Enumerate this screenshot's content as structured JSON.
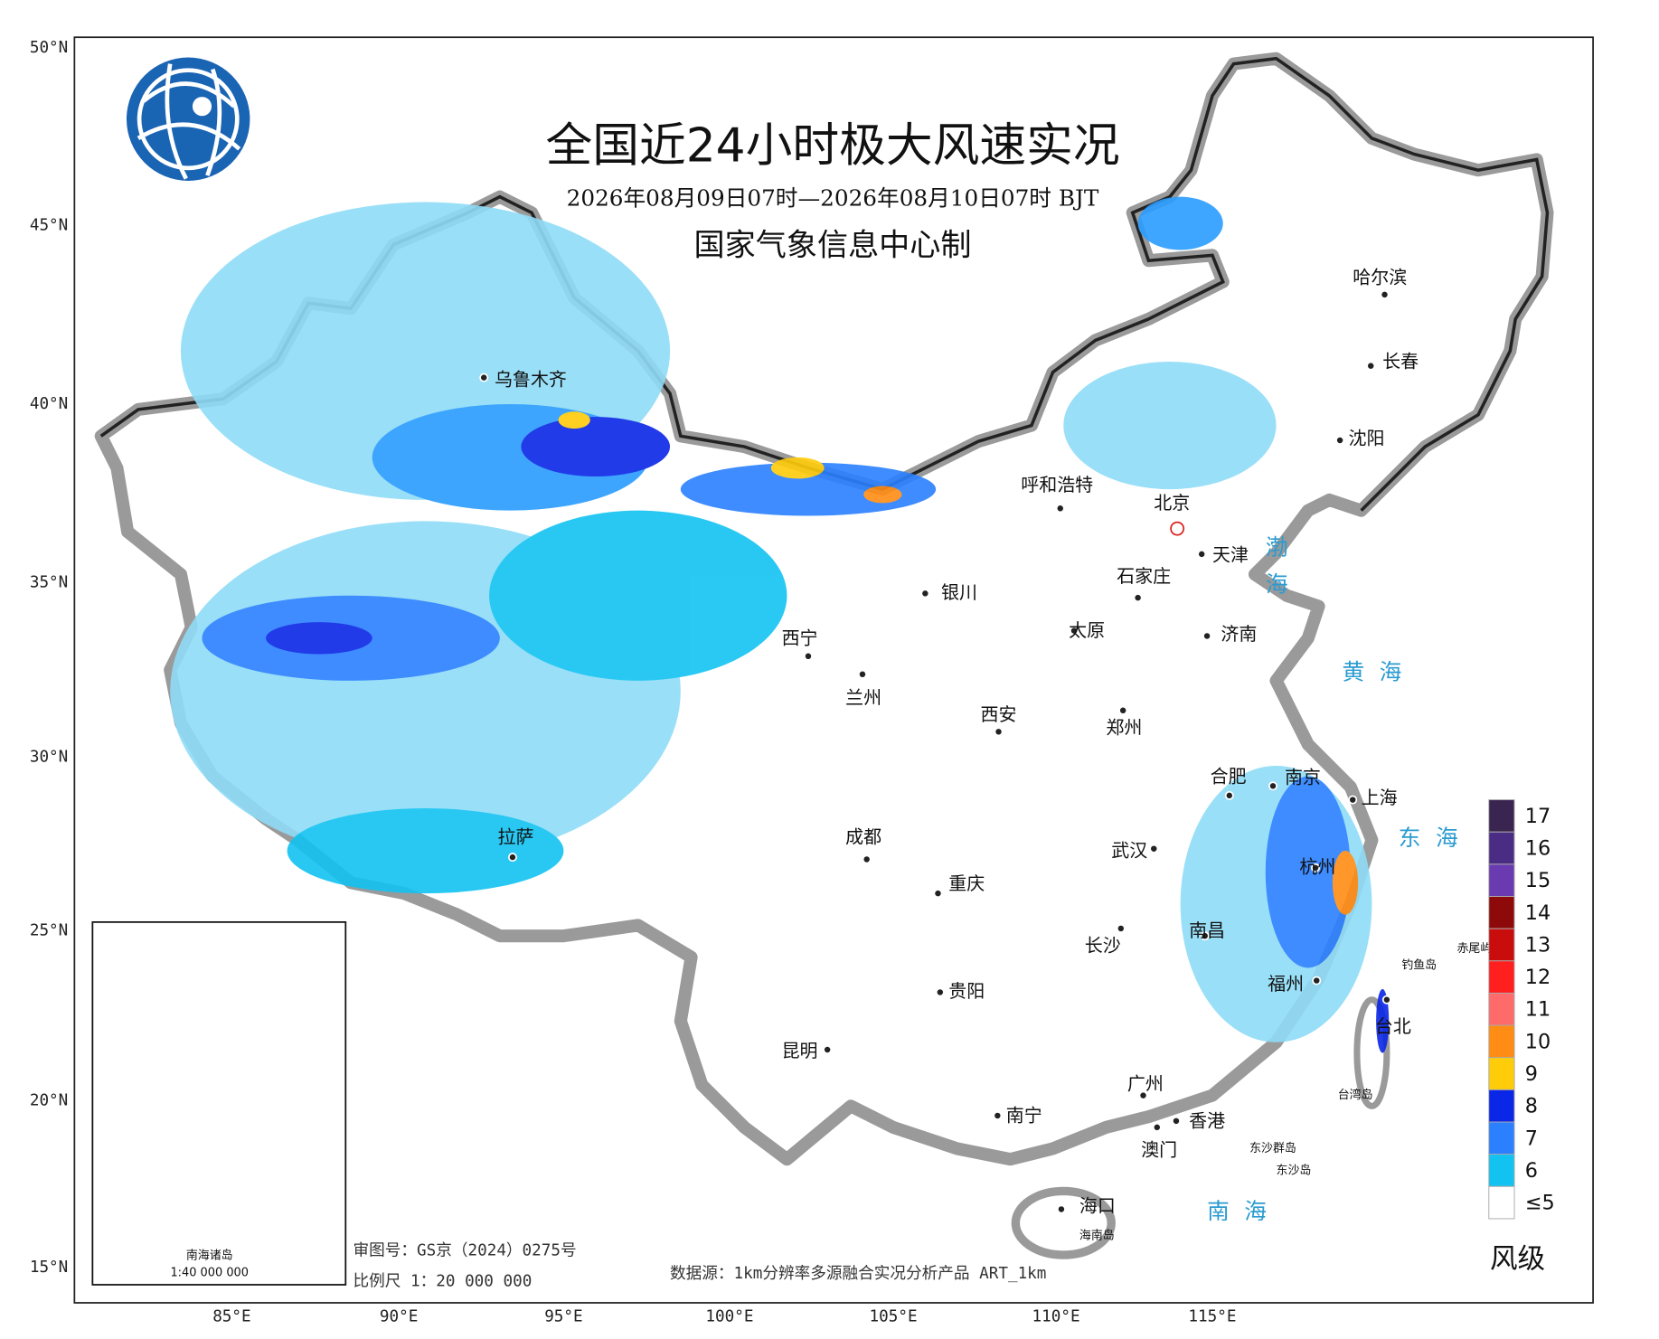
{
  "title": "全国近24小时极大风速实况",
  "subtitle": "2026年08月09日07时—2026年08月10日07时 BJT",
  "producer": "国家气象信息中心制",
  "latitude_labels": [
    "50°N",
    "45°N",
    "40°N",
    "35°N",
    "30°N",
    "25°N",
    "20°N",
    "15°N"
  ],
  "longitude_labels": [
    "85°E",
    "90°E",
    "95°E",
    "100°E",
    "105°E",
    "110°E",
    "115°E"
  ],
  "cities": [
    "乌鲁木齐",
    "呼和浩特",
    "北京",
    "天津",
    "石家庄",
    "银川",
    "太原",
    "济南",
    "西宁",
    "兰州",
    "西安",
    "郑州",
    "合肥",
    "南京",
    "上海",
    "哈尔滨",
    "长春",
    "沈阳",
    "成都",
    "武汉",
    "杭州",
    "拉萨",
    "重庆",
    "南昌",
    "长沙",
    "福州",
    "贵阳",
    "台北",
    "昆明",
    "广州",
    "南宁",
    "香港",
    "澳门",
    "海口"
  ],
  "seas": [
    "渤海",
    "黄海",
    "东海",
    "南海"
  ],
  "islands": [
    "钓鱼岛",
    "赤尾屿",
    "台湾岛",
    "东沙群岛",
    "东沙岛",
    "海南岛"
  ],
  "legend": {
    "title": "风级",
    "items": [
      {
        "label": "17",
        "color": "#3a2450"
      },
      {
        "label": "16",
        "color": "#4b2c85"
      },
      {
        "label": "15",
        "color": "#6a3bb0"
      },
      {
        "label": "14",
        "color": "#8e0a0a"
      },
      {
        "label": "13",
        "color": "#c90d0d"
      },
      {
        "label": "12",
        "color": "#ff1f1f"
      },
      {
        "label": "11",
        "color": "#ff6b6b"
      },
      {
        "label": "10",
        "color": "#ff8c14"
      },
      {
        "label": "9",
        "color": "#ffcc0a"
      },
      {
        "label": "8",
        "color": "#0a26e6"
      },
      {
        "label": "7",
        "color": "#2a80ff"
      },
      {
        "label": "6",
        "color": "#12c3f2"
      },
      {
        "label": "≤5",
        "color": "#ffffff"
      }
    ]
  },
  "footer": {
    "review_number": "审图号：GS京（2024）0275号",
    "scale": "比例尺 1：20 000 000",
    "data_source": "数据源：1km分辨率多源融合实况分析产品 ART_1km"
  },
  "inset": {
    "title": "南海诸岛",
    "scale": "1:40 000 000"
  }
}
